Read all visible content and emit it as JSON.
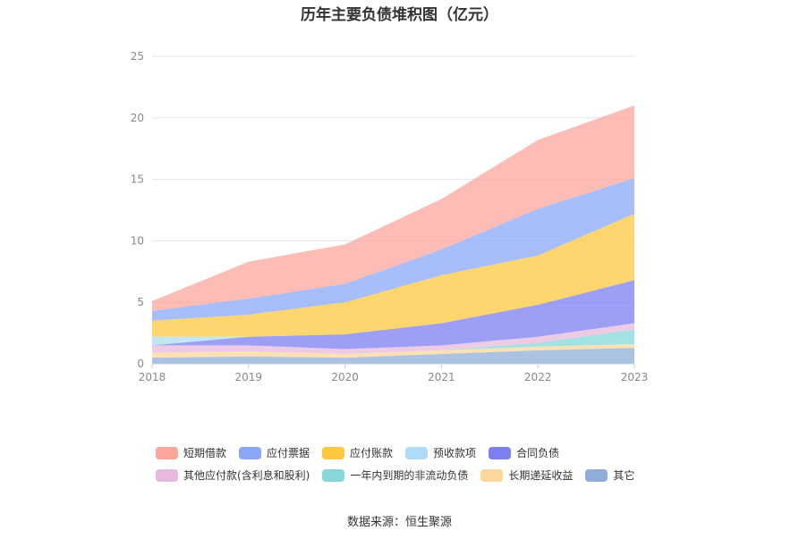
{
  "chart_data": {
    "type": "area",
    "stacked": true,
    "title": "历年主要负债堆积图（亿元）",
    "categories": [
      "2018",
      "2019",
      "2020",
      "2021",
      "2022",
      "2023"
    ],
    "ylim": [
      0,
      25
    ],
    "yticks": [
      0,
      5,
      10,
      15,
      20,
      25
    ],
    "grid": true,
    "legend_position": "bottom",
    "series": [
      {
        "name": "其它",
        "color": "#8fadd9",
        "values": [
          0.5,
          0.6,
          0.5,
          0.8,
          1.1,
          1.3
        ]
      },
      {
        "name": "长期递延收益",
        "color": "#fdd79a",
        "values": [
          0.4,
          0.4,
          0.3,
          0.3,
          0.3,
          0.3
        ]
      },
      {
        "name": "一年内到期的非流动负债",
        "color": "#85d7d8",
        "values": [
          0.0,
          0.0,
          0.0,
          0.0,
          0.3,
          1.2
        ]
      },
      {
        "name": "其他应付款(含利息和股利)",
        "color": "#e8b9dc",
        "values": [
          0.6,
          0.5,
          0.4,
          0.4,
          0.5,
          0.5
        ]
      },
      {
        "name": "合同负债",
        "color": "#7b7ff0",
        "values": [
          0.0,
          0.7,
          1.2,
          1.8,
          2.6,
          3.5
        ]
      },
      {
        "name": "预收款项",
        "color": "#aedcf8",
        "values": [
          0.7,
          0.0,
          0.0,
          0.0,
          0.0,
          0.0
        ]
      },
      {
        "name": "应付账款",
        "color": "#fdc83f",
        "values": [
          1.3,
          1.8,
          2.6,
          3.9,
          4.0,
          5.4
        ]
      },
      {
        "name": "应付票据",
        "color": "#8aa8f8",
        "values": [
          0.8,
          1.3,
          1.5,
          2.1,
          3.8,
          2.9
        ]
      },
      {
        "name": "短期借款",
        "color": "#fca59c",
        "values": [
          0.8,
          3.0,
          3.2,
          4.1,
          5.6,
          5.9
        ]
      }
    ]
  },
  "legend_order": [
    "短期借款",
    "应付票据",
    "应付账款",
    "预收款项",
    "合同负债",
    "其他应付款(含利息和股利)",
    "一年内到期的非流动负债",
    "长期递延收益",
    "其它"
  ],
  "source": "数据来源：恒生聚源"
}
